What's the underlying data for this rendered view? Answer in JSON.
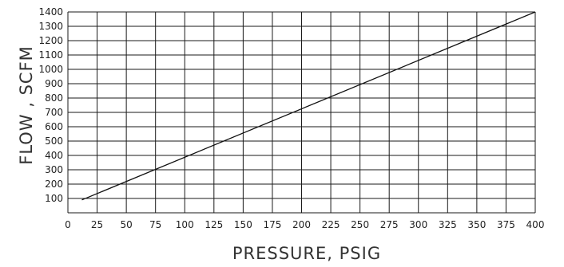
{
  "chart_data": {
    "type": "line",
    "title": "",
    "xlabel": "PRESSURE, PSIG",
    "ylabel": "FLOW , SCFM",
    "xlim": [
      0,
      400
    ],
    "ylim": [
      0,
      1400
    ],
    "xticks": [
      "0",
      "25",
      "50",
      "75",
      "100",
      "125",
      "150",
      "175",
      "200",
      "225",
      "250",
      "275",
      "300",
      "325",
      "350",
      "375",
      "400"
    ],
    "yticks": [
      "100",
      "200",
      "300",
      "400",
      "500",
      "600",
      "700",
      "800",
      "900",
      "1000",
      "1100",
      "1200",
      "1300",
      "1400"
    ],
    "grid": true,
    "series": [
      {
        "x": [
          12,
          400
        ],
        "y": [
          90,
          1400
        ]
      }
    ],
    "colors": {
      "line": "#111111",
      "grid": "#1a1a1a",
      "text": "#222222"
    }
  }
}
